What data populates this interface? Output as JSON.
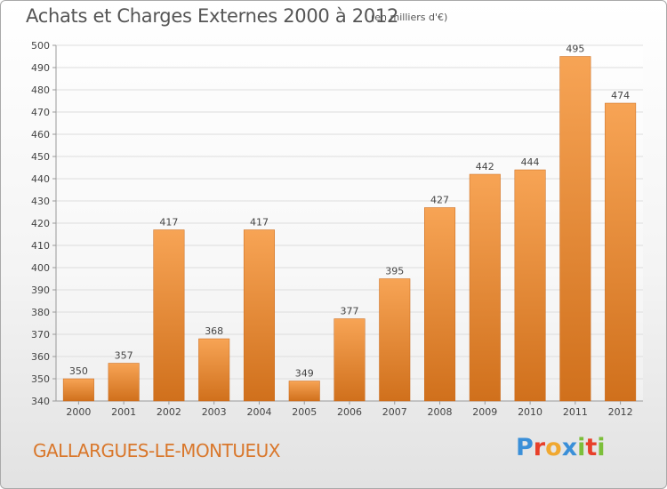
{
  "title": "Achats et Charges Externes 2000 à 2012",
  "subtitle": "(en milliers d'€)",
  "commune": "GALLARGUES-LE-MONTUEUX",
  "logo": {
    "text": "Proxiti",
    "letters": [
      {
        "char": "P",
        "color": "#3a8fd8"
      },
      {
        "char": "r",
        "color": "#e8402a"
      },
      {
        "char": "o",
        "color": "#f0a830"
      },
      {
        "char": "x",
        "color": "#3a8fd8"
      },
      {
        "char": "i",
        "color": "#7cbf3a"
      },
      {
        "char": "t",
        "color": "#e8402a"
      },
      {
        "char": "i",
        "color": "#7cbf3a"
      }
    ]
  },
  "colors": {
    "bar_top": "#f7a455",
    "bar_bottom": "#d0701c",
    "grid": "#dddddd",
    "axis": "#999999",
    "text": "#444444"
  },
  "chart_data": {
    "type": "bar",
    "title": "Achats et Charges Externes 2000 à 2012",
    "subtitle": "(en milliers d'€)",
    "categories": [
      "2000",
      "2001",
      "2002",
      "2003",
      "2004",
      "2005",
      "2006",
      "2007",
      "2008",
      "2009",
      "2010",
      "2011",
      "2012"
    ],
    "values": [
      350,
      357,
      417,
      368,
      417,
      349,
      377,
      395,
      427,
      442,
      444,
      495,
      474
    ],
    "ylim": [
      340,
      500
    ],
    "yticks": [
      340,
      350,
      360,
      370,
      380,
      390,
      400,
      410,
      420,
      430,
      440,
      450,
      460,
      470,
      480,
      490,
      500
    ],
    "xlabel": "",
    "ylabel": "",
    "grid": true,
    "data_labels": true
  }
}
